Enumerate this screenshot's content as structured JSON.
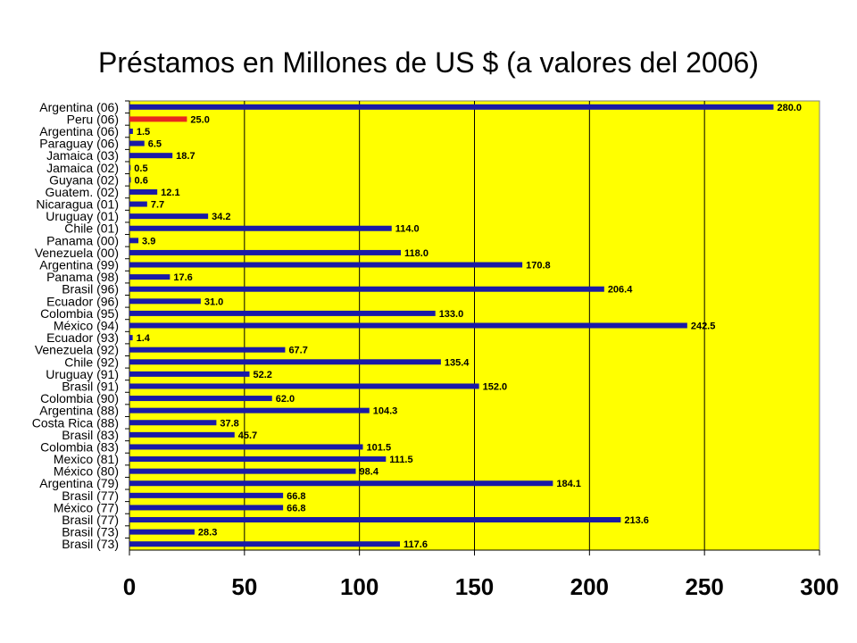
{
  "chart_data": {
    "type": "bar",
    "orientation": "horizontal",
    "title": "Préstamos en Millones de US $ (a valores del 2006)",
    "xlabel": "",
    "ylabel": "",
    "xlim": [
      0,
      300
    ],
    "ticks": [
      "0",
      "50",
      "100",
      "150",
      "200",
      "250",
      "300"
    ],
    "grid": true,
    "legend": "none",
    "colors": {
      "plot_background": "#ffff00",
      "bar": "#1a1aa6",
      "highlight_bar": "#e8281e",
      "gridline": "#000000"
    },
    "highlight_index": 1,
    "categories": [
      "Argentina (06)",
      "Peru (06)",
      "Argentina (06)",
      "Paraguay (06)",
      "Jamaica (03)",
      "Jamaica (02)",
      "Guyana (02)",
      "Guatem. (02)",
      "Nicaragua (01)",
      "Uruguay (01)",
      "Chile (01)",
      "Panama (00)",
      "Venezuela (00)",
      "Argentina (99)",
      "Panama (98)",
      "Brasil (96)",
      "Ecuador (96)",
      "Colombia (95)",
      "México (94)",
      "Ecuador (93)",
      "Venezuela (92)",
      "Chile (92)",
      "Uruguay (91)",
      "Brasil (91)",
      "Colombia (90)",
      "Argentina (88)",
      "Costa Rica (88)",
      "Brasil (83)",
      "Colombia (83)",
      "Mexico (81)",
      "México (80)",
      "Argentina (79)",
      "Brasil (77)",
      "México (77)",
      "Brasil (77)",
      "Brasil (73)",
      "Brasil (73)"
    ],
    "values": [
      280.0,
      25.0,
      1.5,
      6.5,
      18.7,
      0.5,
      0.6,
      12.1,
      7.7,
      34.2,
      114.0,
      3.9,
      118.0,
      170.8,
      17.6,
      206.4,
      31.0,
      133.0,
      242.5,
      1.4,
      67.7,
      135.4,
      52.2,
      152.0,
      62.0,
      104.3,
      37.8,
      45.7,
      101.5,
      111.5,
      98.4,
      184.1,
      66.8,
      66.8,
      213.6,
      28.3,
      117.6
    ],
    "value_labels": [
      "280.0",
      "25.0",
      "1.5",
      "6.5",
      "18.7",
      "0.5",
      "0.6",
      "12.1",
      "7.7",
      "34.2",
      "114.0",
      "3.9",
      "118.0",
      "170.8",
      "17.6",
      "206.4",
      "31.0",
      "133.0",
      "242.5",
      "1.4",
      "67.7",
      "135.4",
      "52.2",
      "152.0",
      "62.0",
      "104.3",
      "37.8",
      "45.7",
      "101.5",
      "111.5",
      "98.4",
      "184.1",
      "66.8",
      "66.8",
      "213.6",
      "28.3",
      "117.6"
    ]
  }
}
